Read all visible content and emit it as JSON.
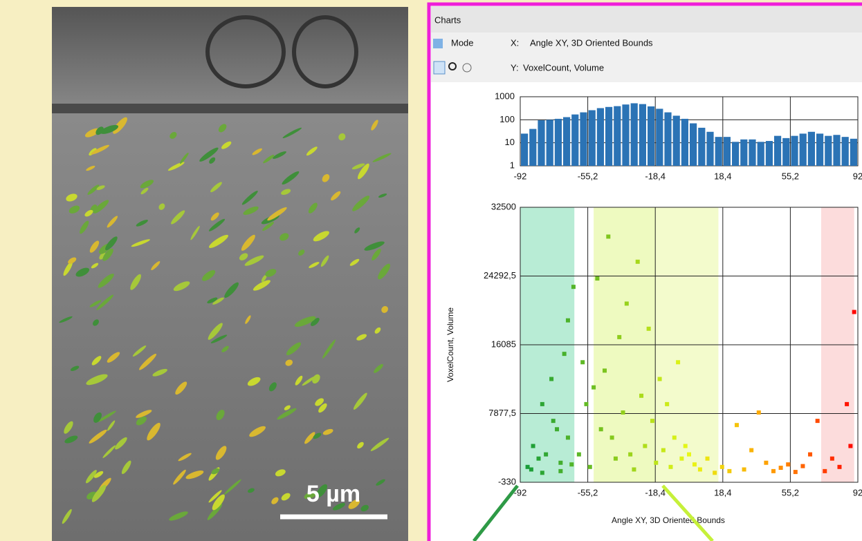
{
  "image": {
    "scale_bar": "5 µm"
  },
  "window": {
    "title": "Charts",
    "mode": "Mode",
    "x_label": "X:",
    "x_value": "Angle XY, 3D Oriented Bounds",
    "y_label": "Y:",
    "y_value": "VoxelCount, Volume"
  },
  "chart_data": [
    {
      "type": "histogram",
      "color": "#2b73b5",
      "log_scale": true,
      "grid": true,
      "bins": [
        -92,
        -87.4,
        -82.8,
        -78.2,
        -73.6,
        -69,
        -64.4,
        -59.8,
        -55.2,
        -50.6,
        -46,
        -41.4,
        -36.8,
        -32.2,
        -27.6,
        -23,
        -18.4,
        -13.8,
        -9.2,
        -4.6,
        0,
        4.6,
        9.2,
        13.8,
        18.4,
        23,
        27.6,
        32.2,
        36.8,
        41.4,
        46,
        50.6,
        55.2,
        59.8,
        64.4,
        69,
        73.6,
        78.2,
        82.8,
        87.4,
        92
      ],
      "values": [
        25,
        40,
        95,
        100,
        110,
        130,
        170,
        210,
        260,
        320,
        360,
        390,
        460,
        520,
        480,
        380,
        300,
        210,
        150,
        110,
        70,
        45,
        30,
        18,
        18,
        11,
        14,
        14,
        11,
        12,
        20,
        16,
        20,
        25,
        30,
        25,
        20,
        22,
        18,
        15
      ],
      "xlim": [
        -92,
        92
      ],
      "xticks": [
        -92,
        {
          "value": -55.2,
          "label": "-55,2"
        },
        {
          "value": -18.4,
          "label": "-18,4"
        },
        {
          "value": 18.4,
          "label": "18,4"
        },
        {
          "value": 55.2,
          "label": "55,2"
        },
        92
      ],
      "ylim": [
        1,
        1000
      ],
      "yticks": [
        1,
        10,
        100,
        1000
      ]
    },
    {
      "type": "scatter",
      "grid": true,
      "x_label": "Angle XY, 3D Oriented Bounds",
      "y_label": "VoxelCount, Volume",
      "point_colormap": [
        "#119a3c",
        "#7bc41e",
        "#e8f816",
        "#ff9a00",
        "#ff0000"
      ],
      "bands": [
        {
          "from": -92,
          "to": -62.5,
          "color": "#b8ecd5"
        },
        {
          "from": -52,
          "to": -18.4,
          "color": "#eefac0"
        },
        {
          "from": -18.4,
          "to": 16,
          "color": "#f3fbcc"
        },
        {
          "from": 72,
          "to": 90,
          "color": "#fcdcdc"
        }
      ],
      "x": [
        -88,
        -85,
        -82,
        -80,
        -78,
        -75,
        -72,
        -70,
        -68,
        -66,
        -64,
        -63,
        -86,
        -80,
        -74,
        -70,
        -66,
        -60,
        -58,
        -56,
        -54,
        -52,
        -50,
        -48,
        -46,
        -44,
        -42,
        -40,
        -38,
        -36,
        -34,
        -32,
        -30,
        -28,
        -26,
        -24,
        -22,
        -20,
        -18,
        -16,
        -14,
        -12,
        -10,
        -8,
        -6,
        -4,
        -2,
        0,
        3,
        6,
        10,
        14,
        18,
        22,
        26,
        30,
        34,
        38,
        42,
        46,
        50,
        54,
        58,
        62,
        66,
        70,
        74,
        78,
        82,
        86,
        88,
        90
      ],
      "values": [
        1500,
        4000,
        2500,
        9000,
        3000,
        12000,
        6000,
        2000,
        15000,
        5000,
        1800,
        23000,
        1200,
        800,
        7000,
        1000,
        19000,
        3000,
        14000,
        9000,
        1500,
        11000,
        24000,
        6000,
        13000,
        29000,
        5000,
        2500,
        17000,
        8000,
        21000,
        3000,
        1200,
        26000,
        10000,
        4000,
        18000,
        7000,
        2000,
        12000,
        3500,
        9000,
        1500,
        5000,
        14000,
        2500,
        4000,
        3000,
        1800,
        1200,
        2500,
        800,
        1500,
        1000,
        6500,
        1200,
        3500,
        8000,
        2000,
        1000,
        1400,
        1800,
        900,
        1600,
        3000,
        7000,
        1000,
        2500,
        1500,
        9000,
        4000,
        20000
      ],
      "xlim": [
        -92,
        92
      ],
      "xticks": [
        -92,
        {
          "value": -55.2,
          "label": "-55,2"
        },
        {
          "value": -18.4,
          "label": "-18,4"
        },
        {
          "value": 18.4,
          "label": "18,4"
        },
        {
          "value": 55.2,
          "label": "55,2"
        },
        92
      ],
      "ylim": [
        -330,
        32500
      ],
      "yticks": [
        -330,
        {
          "value": 7877.5,
          "label": "7877,5"
        },
        16085,
        {
          "value": 24292.5,
          "label": "24292,5"
        },
        32500
      ]
    }
  ]
}
